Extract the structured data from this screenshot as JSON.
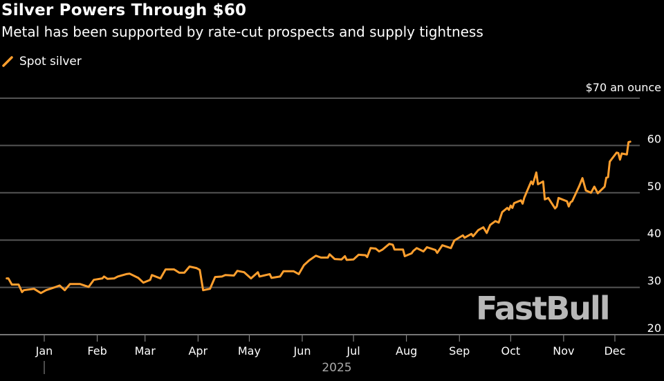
{
  "chart_data": {
    "type": "line",
    "title": "Silver Powers Through $60",
    "subtitle": "Metal has been supported by rate-cut prospects and supply tightness",
    "legend": {
      "position": "top-left",
      "entries": [
        "Spot silver"
      ]
    },
    "series": [
      {
        "name": "Spot silver",
        "color": "#ff9f2e",
        "points": [
          [
            "2024-12-10",
            31.9
          ],
          [
            "2024-12-11",
            31.9
          ],
          [
            "2024-12-13",
            30.6
          ],
          [
            "2024-12-17",
            30.6
          ],
          [
            "2024-12-19",
            29.0
          ],
          [
            "2024-12-20",
            29.4
          ],
          [
            "2024-12-26",
            29.7
          ],
          [
            "2024-12-30",
            28.8
          ],
          [
            "2025-01-02",
            29.4
          ],
          [
            "2025-01-07",
            30.0
          ],
          [
            "2025-01-10",
            30.4
          ],
          [
            "2025-01-13",
            29.4
          ],
          [
            "2025-01-16",
            30.7
          ],
          [
            "2025-01-22",
            30.7
          ],
          [
            "2025-01-27",
            30.1
          ],
          [
            "2025-01-30",
            31.6
          ],
          [
            "2025-02-04",
            31.9
          ],
          [
            "2025-02-05",
            32.3
          ],
          [
            "2025-02-07",
            31.8
          ],
          [
            "2025-02-11",
            31.9
          ],
          [
            "2025-02-13",
            32.3
          ],
          [
            "2025-02-18",
            32.8
          ],
          [
            "2025-02-20",
            32.9
          ],
          [
            "2025-02-25",
            32.0
          ],
          [
            "2025-02-28",
            31.0
          ],
          [
            "2025-03-04",
            31.6
          ],
          [
            "2025-03-05",
            32.6
          ],
          [
            "2025-03-10",
            31.9
          ],
          [
            "2025-03-13",
            33.8
          ],
          [
            "2025-03-18",
            33.8
          ],
          [
            "2025-03-21",
            33.1
          ],
          [
            "2025-03-24",
            33.1
          ],
          [
            "2025-03-27",
            34.4
          ],
          [
            "2025-03-31",
            34.1
          ],
          [
            "2025-04-02",
            33.7
          ],
          [
            "2025-04-04",
            29.4
          ],
          [
            "2025-04-08",
            29.7
          ],
          [
            "2025-04-11",
            32.2
          ],
          [
            "2025-04-15",
            32.3
          ],
          [
            "2025-04-17",
            32.6
          ],
          [
            "2025-04-22",
            32.5
          ],
          [
            "2025-04-24",
            33.5
          ],
          [
            "2025-04-28",
            33.2
          ],
          [
            "2025-05-02",
            31.9
          ],
          [
            "2025-05-06",
            33.2
          ],
          [
            "2025-05-07",
            32.3
          ],
          [
            "2025-05-13",
            32.8
          ],
          [
            "2025-05-14",
            32.0
          ],
          [
            "2025-05-19",
            32.3
          ],
          [
            "2025-05-21",
            33.4
          ],
          [
            "2025-05-27",
            33.4
          ],
          [
            "2025-05-30",
            32.8
          ],
          [
            "2025-06-02",
            34.7
          ],
          [
            "2025-06-05",
            35.7
          ],
          [
            "2025-06-09",
            36.7
          ],
          [
            "2025-06-12",
            36.3
          ],
          [
            "2025-06-16",
            36.3
          ],
          [
            "2025-06-17",
            37.0
          ],
          [
            "2025-06-20",
            36.0
          ],
          [
            "2025-06-24",
            35.9
          ],
          [
            "2025-06-26",
            36.6
          ],
          [
            "2025-06-27",
            35.8
          ],
          [
            "2025-07-01",
            35.9
          ],
          [
            "2025-07-04",
            36.9
          ],
          [
            "2025-07-08",
            36.8
          ],
          [
            "2025-07-09",
            36.4
          ],
          [
            "2025-07-11",
            38.3
          ],
          [
            "2025-07-14",
            38.2
          ],
          [
            "2025-07-16",
            37.6
          ],
          [
            "2025-07-18",
            38.0
          ],
          [
            "2025-07-22",
            39.2
          ],
          [
            "2025-07-24",
            39.0
          ],
          [
            "2025-07-25",
            38.0
          ],
          [
            "2025-07-30",
            38.0
          ],
          [
            "2025-07-31",
            36.6
          ],
          [
            "2025-08-04",
            37.2
          ],
          [
            "2025-08-05",
            37.7
          ],
          [
            "2025-08-07",
            38.3
          ],
          [
            "2025-08-11",
            37.6
          ],
          [
            "2025-08-13",
            38.5
          ],
          [
            "2025-08-18",
            37.9
          ],
          [
            "2025-08-19",
            37.3
          ],
          [
            "2025-08-22",
            38.9
          ],
          [
            "2025-08-27",
            38.3
          ],
          [
            "2025-08-29",
            39.9
          ],
          [
            "2025-09-03",
            41.0
          ],
          [
            "2025-09-04",
            40.5
          ],
          [
            "2025-09-08",
            41.3
          ],
          [
            "2025-09-09",
            40.8
          ],
          [
            "2025-09-12",
            42.1
          ],
          [
            "2025-09-15",
            42.7
          ],
          [
            "2025-09-17",
            41.5
          ],
          [
            "2025-09-19",
            43.2
          ],
          [
            "2025-09-22",
            44.0
          ],
          [
            "2025-09-24",
            43.7
          ],
          [
            "2025-09-26",
            45.9
          ],
          [
            "2025-09-29",
            46.8
          ],
          [
            "2025-09-30",
            46.4
          ],
          [
            "2025-10-01",
            47.3
          ],
          [
            "2025-10-02",
            46.8
          ],
          [
            "2025-10-03",
            47.8
          ],
          [
            "2025-10-07",
            48.4
          ],
          [
            "2025-10-08",
            47.7
          ],
          [
            "2025-10-09",
            49.0
          ],
          [
            "2025-10-13",
            52.4
          ],
          [
            "2025-10-14",
            51.8
          ],
          [
            "2025-10-16",
            54.3
          ],
          [
            "2025-10-17",
            51.8
          ],
          [
            "2025-10-20",
            52.4
          ],
          [
            "2025-10-21",
            48.6
          ],
          [
            "2025-10-23",
            48.9
          ],
          [
            "2025-10-27",
            46.7
          ],
          [
            "2025-10-28",
            47.1
          ],
          [
            "2025-10-29",
            48.9
          ],
          [
            "2025-11-03",
            48.2
          ],
          [
            "2025-11-04",
            47.1
          ],
          [
            "2025-11-05",
            48.0
          ],
          [
            "2025-11-06",
            48.2
          ],
          [
            "2025-11-10",
            51.3
          ],
          [
            "2025-11-12",
            53.1
          ],
          [
            "2025-11-14",
            50.5
          ],
          [
            "2025-11-17",
            50.0
          ],
          [
            "2025-11-19",
            51.3
          ],
          [
            "2025-11-21",
            49.9
          ],
          [
            "2025-11-25",
            51.3
          ],
          [
            "2025-11-26",
            53.2
          ],
          [
            "2025-11-27",
            53.3
          ],
          [
            "2025-11-28",
            56.6
          ],
          [
            "2025-12-02",
            58.5
          ],
          [
            "2025-12-03",
            58.4
          ],
          [
            "2025-12-04",
            57.0
          ],
          [
            "2025-12-05",
            58.3
          ],
          [
            "2025-12-08",
            58.1
          ],
          [
            "2025-12-09",
            60.7
          ],
          [
            "2025-12-10",
            60.8
          ]
        ]
      }
    ],
    "yaxis": {
      "ylim": [
        20,
        70
      ],
      "ticks": [
        20,
        30,
        40,
        50,
        60,
        70
      ],
      "tick_labels": [
        "20",
        "30",
        "40",
        "50",
        "60",
        "$70 an ounce"
      ],
      "position": "right",
      "grid": true
    },
    "xaxis": {
      "ticks": [
        "2025-01-01",
        "2025-02-01",
        "2025-03-01",
        "2025-04-01",
        "2025-05-01",
        "2025-06-01",
        "2025-07-01",
        "2025-08-01",
        "2025-09-01",
        "2025-10-01",
        "2025-11-01",
        "2025-12-01"
      ],
      "tick_labels": [
        "Jan",
        "Feb",
        "Mar",
        "Apr",
        "May",
        "Jun",
        "Jul",
        "Aug",
        "Sep",
        "Oct",
        "Nov",
        "Dec"
      ],
      "year_label": "2025"
    }
  },
  "watermark": "FastBull"
}
